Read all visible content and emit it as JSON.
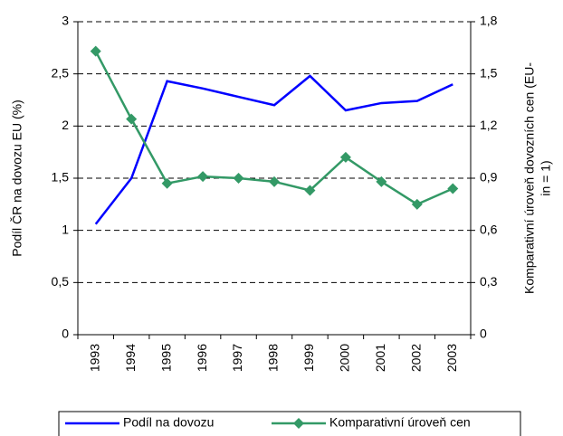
{
  "chart_data": {
    "type": "line",
    "ylabel": "Podíl ČR na dovozu EU (%)",
    "y2label": [
      "Komparativní úroveň dovozních cen (EU-",
      "in = 1)"
    ],
    "categories": [
      "1993",
      "1994",
      "1995",
      "1996",
      "1997",
      "1998",
      "1999",
      "2000",
      "2001",
      "2002",
      "2003"
    ],
    "series": [
      {
        "name": "Podíl na dovozu",
        "color": "#0000ff",
        "values": [
          1.06,
          1.5,
          2.43,
          2.36,
          2.28,
          2.2,
          2.48,
          2.15,
          2.22,
          2.24,
          2.4
        ]
      },
      {
        "name": "Komparativní úroveň cen",
        "color": "#339966",
        "axis": "y2",
        "marker": "diamond",
        "values": [
          1.63,
          1.24,
          0.87,
          0.91,
          0.9,
          0.88,
          0.83,
          1.02,
          0.88,
          0.75,
          0.84
        ]
      }
    ],
    "ylim": [
      0,
      3
    ],
    "yticks": [
      0,
      {
        "value": 0.5,
        "label": "0,5"
      },
      1,
      {
        "value": 1.5,
        "label": "1,5"
      },
      2,
      {
        "value": 2.5,
        "label": "2,5"
      },
      3
    ],
    "y2lim": [
      0,
      1.8
    ],
    "y2ticks": [
      0,
      {
        "value": 0.3,
        "label": "0,3"
      },
      {
        "value": 0.6,
        "label": "0,6"
      },
      {
        "value": 0.9,
        "label": "0,9"
      },
      {
        "value": 1.2,
        "label": "1,2"
      },
      {
        "value": 1.5,
        "label": "1,5"
      },
      {
        "value": 1.8,
        "label": "1,8"
      }
    ],
    "grid": true,
    "legend": "bottom"
  }
}
